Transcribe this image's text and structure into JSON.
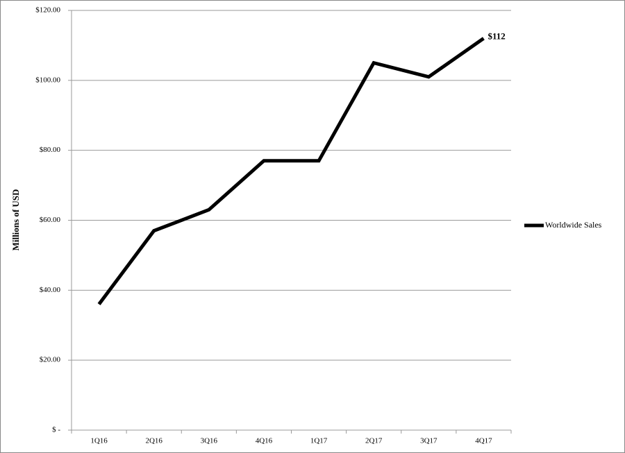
{
  "chart_data": {
    "type": "line",
    "y_axis_label": "Millions of USD",
    "categories": [
      "1Q16",
      "2Q16",
      "3Q16",
      "4Q16",
      "1Q17",
      "2Q17",
      "3Q17",
      "4Q17"
    ],
    "series": [
      {
        "name": "Worldwide Sales",
        "color": "#000000",
        "values": [
          36,
          57,
          63,
          77,
          77,
          105,
          101,
          112
        ],
        "value_labels": [
          null,
          null,
          null,
          null,
          null,
          null,
          null,
          "$112"
        ]
      }
    ],
    "ylim": [
      0,
      120
    ],
    "yticks": [
      {
        "value": 0,
        "label": "$ -"
      },
      {
        "value": 20,
        "label": "$20.00"
      },
      {
        "value": 40,
        "label": "$40.00"
      },
      {
        "value": 60,
        "label": "$60.00"
      },
      {
        "value": 80,
        "label": "$80.00"
      },
      {
        "value": 100,
        "label": "$100.00"
      },
      {
        "value": 120,
        "label": "$120.00"
      }
    ],
    "grid": true,
    "legend": "right"
  }
}
